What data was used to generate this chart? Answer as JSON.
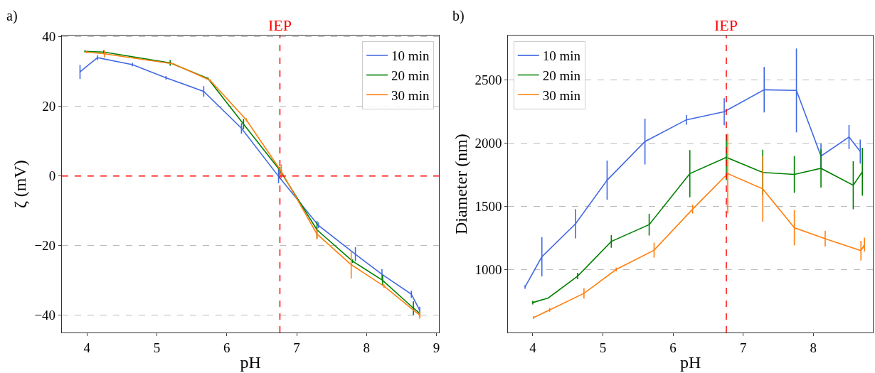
{
  "chart_data": [
    {
      "type": "line",
      "xlabel": "pH",
      "ylabel": "ζ (mV)",
      "annotations": [
        "a)"
      ],
      "xlim": [
        3.64,
        9.04
      ],
      "ylim": [
        -45,
        40.3
      ],
      "xticks": [
        4,
        5,
        6,
        7,
        8,
        9
      ],
      "yticks": [
        -40,
        -20,
        0,
        20,
        40
      ],
      "grid": "y",
      "legend": "top right",
      "marker": "none",
      "line_style": "solid",
      "ref_lines": [
        {
          "axis": "x",
          "value": 6.76,
          "label": "IEP",
          "color": "#ff0000",
          "line_style": "dashed"
        },
        {
          "axis": "y",
          "value": 0,
          "label": null,
          "color": "#ff0000",
          "line_style": "dashed"
        }
      ],
      "series": [
        {
          "name": "10 min",
          "color": "#4169e1",
          "x": [
            3.9,
            4.15,
            4.65,
            5.13,
            5.67,
            6.21,
            6.74,
            7.31,
            7.84,
            8.22,
            8.64,
            8.76
          ],
          "values": [
            29.9,
            34.0,
            32.0,
            28.2,
            24.3,
            13.7,
            -0.1,
            -14.2,
            -22.5,
            -28.3,
            -34.0,
            -38.6
          ],
          "errors": [
            2,
            0.7,
            0.5,
            0.5,
            1.5,
            1.5,
            2,
            0.8,
            2,
            1.5,
            1,
            1
          ]
        },
        {
          "name": "20 min",
          "color": "#008000",
          "x": [
            3.97,
            4.24,
            5.19,
            5.73,
            6.24,
            6.76,
            7.29,
            7.8,
            8.23,
            8.67,
            8.76
          ],
          "values": [
            35.8,
            35.6,
            32.5,
            28.0,
            14.9,
            1.6,
            -15.5,
            -24.5,
            -30.0,
            -38.0,
            -39.5
          ],
          "errors": [
            0.3,
            0.5,
            0.8,
            0.3,
            1.5,
            1,
            2.5,
            0.5,
            1.5,
            2,
            0.5
          ]
        },
        {
          "name": "30 min",
          "color": "#ff7f0e",
          "x": [
            3.99,
            4.25,
            5.24,
            5.76,
            6.28,
            6.78,
            7.29,
            7.78,
            8.25,
            8.76
          ],
          "values": [
            35.6,
            35.1,
            32.2,
            27.5,
            16.1,
            1.3,
            -16.7,
            -25.5,
            -31.7,
            -40.0
          ],
          "errors": [
            0.3,
            1,
            0.3,
            0.3,
            0.5,
            2,
            1.5,
            4,
            0.5,
            1
          ]
        }
      ]
    },
    {
      "type": "line",
      "xlabel": "pH",
      "ylabel": "Diameter (nm)",
      "annotations": [
        "b)"
      ],
      "xlim": [
        3.65,
        8.85
      ],
      "ylim": [
        500,
        2850
      ],
      "xticks": [
        4,
        5,
        6,
        7,
        8
      ],
      "yticks": [
        1000,
        1500,
        2000,
        2500
      ],
      "grid": "y",
      "legend": "top left",
      "marker": "none",
      "line_style": "solid",
      "ref_lines": [
        {
          "axis": "x",
          "value": 6.76,
          "label": "IEP",
          "color": "#ff0000",
          "line_style": "dashed"
        }
      ],
      "series": [
        {
          "name": "10 min",
          "color": "#4169e1",
          "x": [
            3.89,
            4.13,
            4.61,
            5.06,
            5.6,
            6.19,
            6.73,
            7.3,
            7.76,
            8.11,
            8.51,
            8.67
          ],
          "values": [
            861,
            1100,
            1361,
            1706,
            2012,
            2184,
            2248,
            2422,
            2417,
            1897,
            2048,
            1933
          ],
          "errors": [
            15,
            155,
            115,
            155,
            181,
            38,
            107,
            180,
            332,
            100,
            95,
            95
          ]
        },
        {
          "name": "20 min",
          "color": "#008000",
          "x": [
            4.0,
            4.22,
            4.64,
            5.12,
            5.66,
            6.24,
            6.76,
            7.28,
            7.73,
            8.11,
            8.57,
            8.7
          ],
          "values": [
            737,
            773,
            947,
            1221,
            1354,
            1758,
            1887,
            1767,
            1752,
            1800,
            1666,
            1773
          ],
          "errors": [
            15,
            0,
            25,
            50,
            86,
            187,
            180,
            180,
            146,
            153,
            190,
            190
          ]
        },
        {
          "name": "30 min",
          "color": "#ff7f0e",
          "x": [
            4.01,
            4.24,
            4.73,
            5.19,
            5.73,
            6.28,
            6.78,
            7.28,
            7.73,
            8.17,
            8.68,
            8.73
          ],
          "values": [
            618,
            679,
            810,
            999,
            1152,
            1477,
            1758,
            1637,
            1330,
            1243,
            1148,
            1196
          ],
          "errors": [
            10,
            15,
            42,
            15,
            59,
            35,
            316,
            259,
            140,
            62,
            78,
            55
          ]
        }
      ]
    }
  ]
}
